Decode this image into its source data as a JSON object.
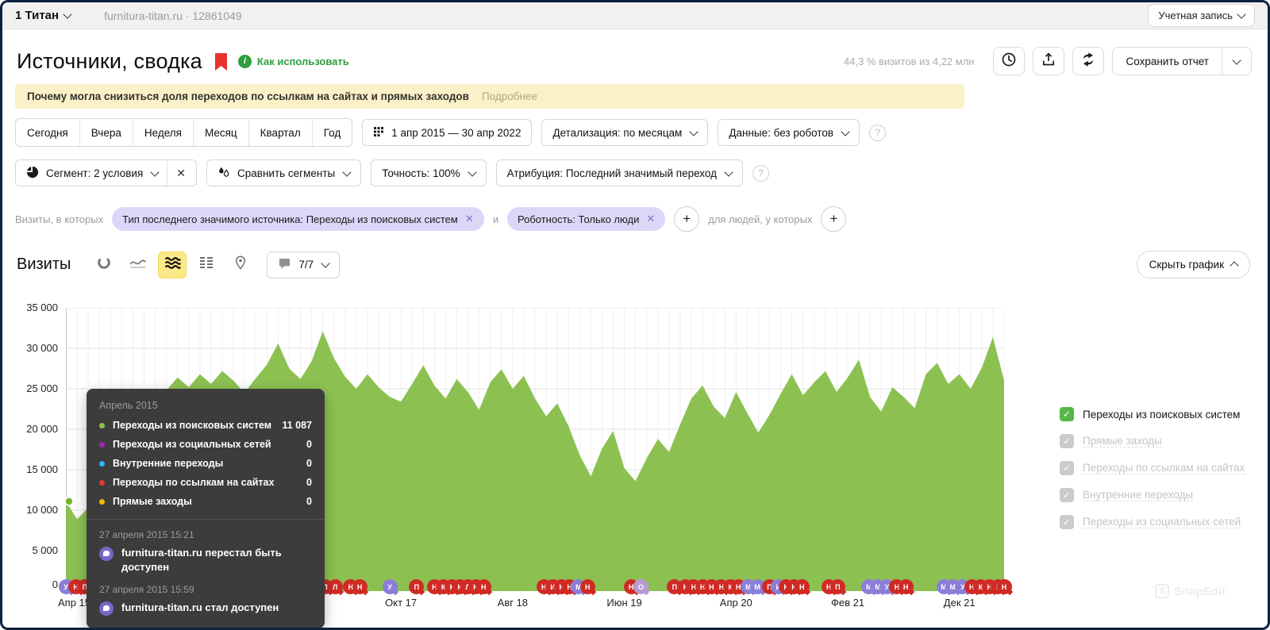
{
  "glyphs": {
    "close": "✕",
    "plus": "+",
    "question": "?",
    "check": "✓",
    "info": "i",
    "dot_sep": "·",
    "watermark_badge": "S"
  },
  "topbar": {
    "account": "1 Титан",
    "site": "furnitura-titan.ru · 12861049",
    "account_button": "Учетная запись"
  },
  "header": {
    "title": "Источники, сводка",
    "help_link": "Как использовать",
    "visits_share": "44,3 % визитов из 4,22 млн",
    "save_report": "Сохранить отчет"
  },
  "banner": {
    "text": "Почему могла снизиться доля переходов по ссылкам на сайтах и прямых заходов",
    "link": "Подробнее"
  },
  "filters": {
    "periods": [
      "Сегодня",
      "Вчера",
      "Неделя",
      "Месяц",
      "Квартал",
      "Год"
    ],
    "date_range": "1 апр 2015 — 30 апр 2022",
    "detail": "Детализация: по месяцам",
    "data_mode": "Данные: без роботов",
    "segment": "Сегмент: 2 условия",
    "compare": "Сравнить сегменты",
    "accuracy": "Точность: 100%",
    "attribution": "Атрибуция: Последний значимый переход"
  },
  "segment_bar": {
    "prefix": "Визиты, в которых",
    "chips": [
      {
        "label": "Тип последнего значимого источника: Переходы из поисковых систем"
      },
      {
        "label": "Роботность: Только люди"
      }
    ],
    "conjunction": "и",
    "suffix": "для людей, у которых"
  },
  "chart_header": {
    "title": "Визиты",
    "comments_count": "7/7",
    "hide_chart": "Скрыть график"
  },
  "chart_data": {
    "type": "area",
    "title": "Визиты",
    "series": [
      {
        "name": "Переходы из поисковых систем",
        "color": "#8cc152",
        "values": [
          11087,
          8900,
          10300,
          11800,
          13200,
          15800,
          18500,
          21000,
          23500,
          24800,
          26400,
          25200,
          26800,
          25600,
          27200,
          26000,
          24500,
          26300,
          28000,
          30600,
          27500,
          26200,
          28400,
          32100,
          28800,
          26500,
          25000,
          26800,
          25200,
          24000,
          23400,
          25600,
          27900,
          25400,
          23800,
          26200,
          24600,
          22400,
          25800,
          27400,
          25000,
          26600,
          23800,
          21600,
          23200,
          20400,
          16800,
          14200,
          17600,
          19800,
          15200,
          13600,
          16400,
          18800,
          17200,
          20600,
          23800,
          25400,
          22800,
          21400,
          24600,
          22000,
          19600,
          21800,
          24400,
          26800,
          24200,
          25800,
          27200,
          24600,
          26400,
          28600,
          24000,
          22200,
          25200,
          24000,
          22600,
          26800,
          28200,
          25600,
          26800,
          25000,
          27600,
          31400,
          26000
        ]
      }
    ],
    "x_start": "Апрель 2015",
    "x_end": "Апрель 2022",
    "x_tick_labels": [
      "Апр 15",
      "Окт 17",
      "Авг 18",
      "Июн 19",
      "Апр 20",
      "Фев 21",
      "Дек 21"
    ],
    "x_tick_months": [
      0,
      30,
      40,
      50,
      60,
      70,
      80
    ],
    "ylim": [
      0,
      35000
    ],
    "y_ticks": [
      "0",
      "5 000",
      "10 000",
      "15 000",
      "20 000",
      "25 000",
      "30 000",
      "35 000"
    ],
    "grid": true,
    "legend_position": "right",
    "highlighted_point": {
      "month": 0,
      "label": "Апрель 2015",
      "value": 11087
    },
    "annotations": {
      "format": [
        "month_index",
        "color(r=red,p=purple,o=light-purple)",
        "letter"
      ],
      "colors": {
        "r": "#cf2b24",
        "p": "#8b7ed8",
        "o": "#b89ad6"
      },
      "items": [
        [
          0.0,
          "p",
          "У"
        ],
        [
          0.9,
          "r",
          "Н"
        ],
        [
          1.7,
          "r",
          "П"
        ],
        [
          23.2,
          "r",
          "П"
        ],
        [
          24.1,
          "r",
          "Л"
        ],
        [
          25.5,
          "r",
          "Н"
        ],
        [
          26.3,
          "r",
          "Н"
        ],
        [
          29.0,
          "p",
          "У"
        ],
        [
          31.4,
          "r",
          "П"
        ],
        [
          33.0,
          "r",
          "Н"
        ],
        [
          33.8,
          "r",
          "К"
        ],
        [
          34.6,
          "r",
          "Н"
        ],
        [
          35.3,
          "r",
          "Н"
        ],
        [
          36.0,
          "r",
          "Л"
        ],
        [
          36.7,
          "r",
          "Н"
        ],
        [
          37.4,
          "r",
          "Н"
        ],
        [
          42.8,
          "r",
          "Н"
        ],
        [
          43.6,
          "r",
          "И"
        ],
        [
          44.4,
          "r",
          "Н"
        ],
        [
          45.1,
          "r",
          "Н"
        ],
        [
          45.9,
          "p",
          "М"
        ],
        [
          46.7,
          "r",
          "Н"
        ],
        [
          50.6,
          "r",
          "Н"
        ],
        [
          51.5,
          "o",
          "О"
        ],
        [
          54.5,
          "r",
          "П"
        ],
        [
          55.5,
          "r",
          "Н"
        ],
        [
          56.2,
          "r",
          "Н"
        ],
        [
          57.0,
          "r",
          "Н"
        ],
        [
          57.8,
          "r",
          "Н"
        ],
        [
          58.7,
          "r",
          "Н"
        ],
        [
          59.5,
          "r",
          "К"
        ],
        [
          60.2,
          "r",
          "Н"
        ],
        [
          61.1,
          "p",
          "М"
        ],
        [
          61.9,
          "p",
          "М"
        ],
        [
          63.0,
          "r",
          "П"
        ],
        [
          63.8,
          "p",
          "И"
        ],
        [
          64.5,
          "r",
          "Н"
        ],
        [
          65.2,
          "r",
          "Н"
        ],
        [
          65.9,
          "r",
          "Н"
        ],
        [
          68.3,
          "r",
          "Н"
        ],
        [
          69.1,
          "r",
          "П"
        ],
        [
          71.9,
          "p",
          "М"
        ],
        [
          72.7,
          "p",
          "М"
        ],
        [
          73.5,
          "p",
          "У"
        ],
        [
          74.4,
          "r",
          "Н"
        ],
        [
          75.2,
          "r",
          "Н"
        ],
        [
          78.6,
          "p",
          "М"
        ],
        [
          79.4,
          "p",
          "М"
        ],
        [
          80.3,
          "p",
          "У"
        ],
        [
          81.1,
          "r",
          "Н"
        ],
        [
          81.9,
          "r",
          "К"
        ],
        [
          82.7,
          "r",
          "Н"
        ],
        [
          83.5,
          "r",
          "К"
        ],
        [
          84.0,
          "r",
          "Н"
        ]
      ]
    }
  },
  "legend": {
    "items": [
      {
        "label": "Переходы из поисковых систем",
        "checked": true,
        "active": true,
        "color": "#57b648"
      },
      {
        "label": "Прямые заходы",
        "checked": true,
        "active": false
      },
      {
        "label": "Переходы по ссылкам на сайтах",
        "checked": true,
        "active": false
      },
      {
        "label": "Внутренние переходы",
        "checked": true,
        "active": false
      },
      {
        "label": "Переходы из социальных сетей",
        "checked": true,
        "active": false
      }
    ]
  },
  "tooltip": {
    "title": "Апрель 2015",
    "rows": [
      {
        "label": "Переходы из поисковых систем",
        "value": "11 087",
        "color": "#8bc34a"
      },
      {
        "label": "Переходы из социальных сетей",
        "value": "0",
        "color": "#9c27b0"
      },
      {
        "label": "Внутренние переходы",
        "value": "0",
        "color": "#29b6f6"
      },
      {
        "label": "Переходы по ссылкам на сайтах",
        "value": "0",
        "color": "#e53935"
      },
      {
        "label": "Прямые заходы",
        "value": "0",
        "color": "#f2b705"
      }
    ],
    "events": [
      {
        "time": "27 апреля 2015 15:21",
        "text": "furnitura-titan.ru перестал быть доступен"
      },
      {
        "time": "27 апреля 2015 15:59",
        "text": "furnitura-titan.ru стал доступен"
      }
    ]
  },
  "watermark": "SnapEdit"
}
